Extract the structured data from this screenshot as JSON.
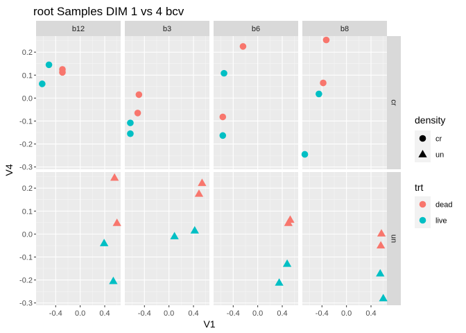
{
  "chart_data": {
    "type": "scatter",
    "title": "root Samples DIM 1 vs 4 bcv",
    "xlabel": "V1",
    "ylabel": "V4",
    "xlim": [
      -0.72,
      0.66
    ],
    "ylim": [
      -0.31,
      0.27
    ],
    "x_ticks": [
      {
        "value": -0.4,
        "label": "-0.4"
      },
      {
        "value": 0.0,
        "label": "0.0"
      },
      {
        "value": 0.4,
        "label": "0.4"
      }
    ],
    "y_ticks": [
      {
        "value": 0.2,
        "label": "0.2"
      },
      {
        "value": 0.1,
        "label": "0.1"
      },
      {
        "value": 0.0,
        "label": "0.0"
      },
      {
        "value": -0.1,
        "label": "-0.1"
      },
      {
        "value": -0.2,
        "label": "-0.2"
      },
      {
        "value": -0.3,
        "label": "-0.3"
      }
    ],
    "grid": true,
    "facet_columns": [
      "b12",
      "b3",
      "b6",
      "b8"
    ],
    "facet_rows": [
      "cr",
      "un"
    ],
    "colors": {
      "dead": "#F8766D",
      "live": "#00BFC4",
      "panel_bg": "#EBEBEB",
      "strip_bg": "#D9D9D9",
      "grid_major": "#FFFFFF"
    },
    "shapes": {
      "cr": "circle",
      "un": "triangle"
    },
    "legend": {
      "position": "right",
      "density_title": "density",
      "density_entries": [
        "cr",
        "un"
      ],
      "trt_title": "trt",
      "trt_entries": [
        "dead",
        "live"
      ]
    },
    "points": [
      {
        "col": "b12",
        "row": "cr",
        "trt": "live",
        "x": -0.51,
        "y": 0.145
      },
      {
        "col": "b12",
        "row": "cr",
        "trt": "live",
        "x": -0.62,
        "y": 0.062
      },
      {
        "col": "b12",
        "row": "cr",
        "trt": "dead",
        "x": -0.29,
        "y": 0.125
      },
      {
        "col": "b12",
        "row": "cr",
        "trt": "dead",
        "x": -0.29,
        "y": 0.112
      },
      {
        "col": "b3",
        "row": "cr",
        "trt": "dead",
        "x": -0.49,
        "y": 0.015
      },
      {
        "col": "b3",
        "row": "cr",
        "trt": "dead",
        "x": -0.51,
        "y": -0.065
      },
      {
        "col": "b3",
        "row": "cr",
        "trt": "live",
        "x": -0.63,
        "y": -0.108
      },
      {
        "col": "b3",
        "row": "cr",
        "trt": "live",
        "x": -0.63,
        "y": -0.155
      },
      {
        "col": "b6",
        "row": "cr",
        "trt": "dead",
        "x": -0.24,
        "y": 0.225
      },
      {
        "col": "b6",
        "row": "cr",
        "trt": "live",
        "x": -0.55,
        "y": 0.108
      },
      {
        "col": "b6",
        "row": "cr",
        "trt": "dead",
        "x": -0.57,
        "y": -0.082
      },
      {
        "col": "b6",
        "row": "cr",
        "trt": "live",
        "x": -0.57,
        "y": -0.163
      },
      {
        "col": "b8",
        "row": "cr",
        "trt": "dead",
        "x": -0.33,
        "y": 0.253
      },
      {
        "col": "b8",
        "row": "cr",
        "trt": "dead",
        "x": -0.38,
        "y": 0.066
      },
      {
        "col": "b8",
        "row": "cr",
        "trt": "live",
        "x": -0.45,
        "y": 0.018
      },
      {
        "col": "b8",
        "row": "cr",
        "trt": "live",
        "x": -0.68,
        "y": -0.245
      },
      {
        "col": "b12",
        "row": "un",
        "trt": "dead",
        "x": 0.56,
        "y": 0.245
      },
      {
        "col": "b12",
        "row": "un",
        "trt": "dead",
        "x": 0.6,
        "y": 0.048
      },
      {
        "col": "b12",
        "row": "un",
        "trt": "live",
        "x": 0.39,
        "y": -0.04
      },
      {
        "col": "b12",
        "row": "un",
        "trt": "live",
        "x": 0.54,
        "y": -0.205
      },
      {
        "col": "b3",
        "row": "un",
        "trt": "dead",
        "x": 0.54,
        "y": 0.222
      },
      {
        "col": "b3",
        "row": "un",
        "trt": "dead",
        "x": 0.49,
        "y": 0.175
      },
      {
        "col": "b3",
        "row": "un",
        "trt": "live",
        "x": 0.42,
        "y": 0.015
      },
      {
        "col": "b3",
        "row": "un",
        "trt": "live",
        "x": 0.09,
        "y": -0.01
      },
      {
        "col": "b6",
        "row": "un",
        "trt": "dead",
        "x": 0.53,
        "y": 0.062
      },
      {
        "col": "b6",
        "row": "un",
        "trt": "dead",
        "x": 0.5,
        "y": 0.048
      },
      {
        "col": "b6",
        "row": "un",
        "trt": "live",
        "x": 0.48,
        "y": -0.13
      },
      {
        "col": "b6",
        "row": "un",
        "trt": "live",
        "x": 0.35,
        "y": -0.212
      },
      {
        "col": "b8",
        "row": "un",
        "trt": "dead",
        "x": 0.57,
        "y": 0.002
      },
      {
        "col": "b8",
        "row": "un",
        "trt": "dead",
        "x": 0.56,
        "y": -0.05
      },
      {
        "col": "b8",
        "row": "un",
        "trt": "live",
        "x": 0.55,
        "y": -0.172
      },
      {
        "col": "b8",
        "row": "un",
        "trt": "live",
        "x": 0.6,
        "y": -0.28
      }
    ]
  }
}
